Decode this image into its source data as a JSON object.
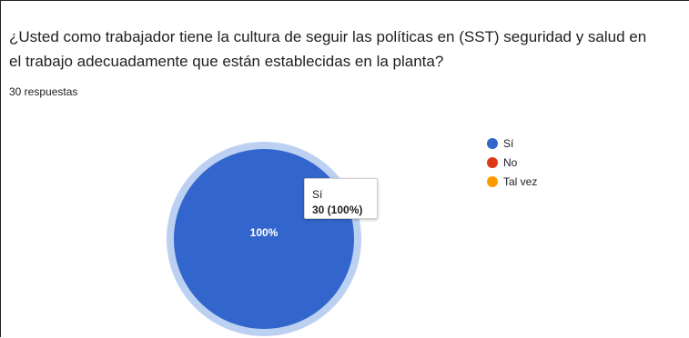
{
  "question": {
    "line1": "¿Usted como trabajador tiene la cultura de seguir las políticas en (SST) seguridad y salud en",
    "line2": "el trabajo adecuadamente que están establecidas en la planta?"
  },
  "response_count": "30 respuestas",
  "tooltip": {
    "label": "Sí",
    "value": "30 (100%)"
  },
  "colors": {
    "si": "#3366cc",
    "no": "#dc3912",
    "tal_vez": "#ff9900",
    "highlight_ring": "#bcd1f2"
  },
  "chart_data": {
    "type": "pie",
    "categories": [
      "Sí",
      "No",
      "Tal vez"
    ],
    "values": [
      30,
      0,
      0
    ],
    "percent_labels": [
      "100%",
      "",
      ""
    ],
    "legend_position": "right"
  }
}
